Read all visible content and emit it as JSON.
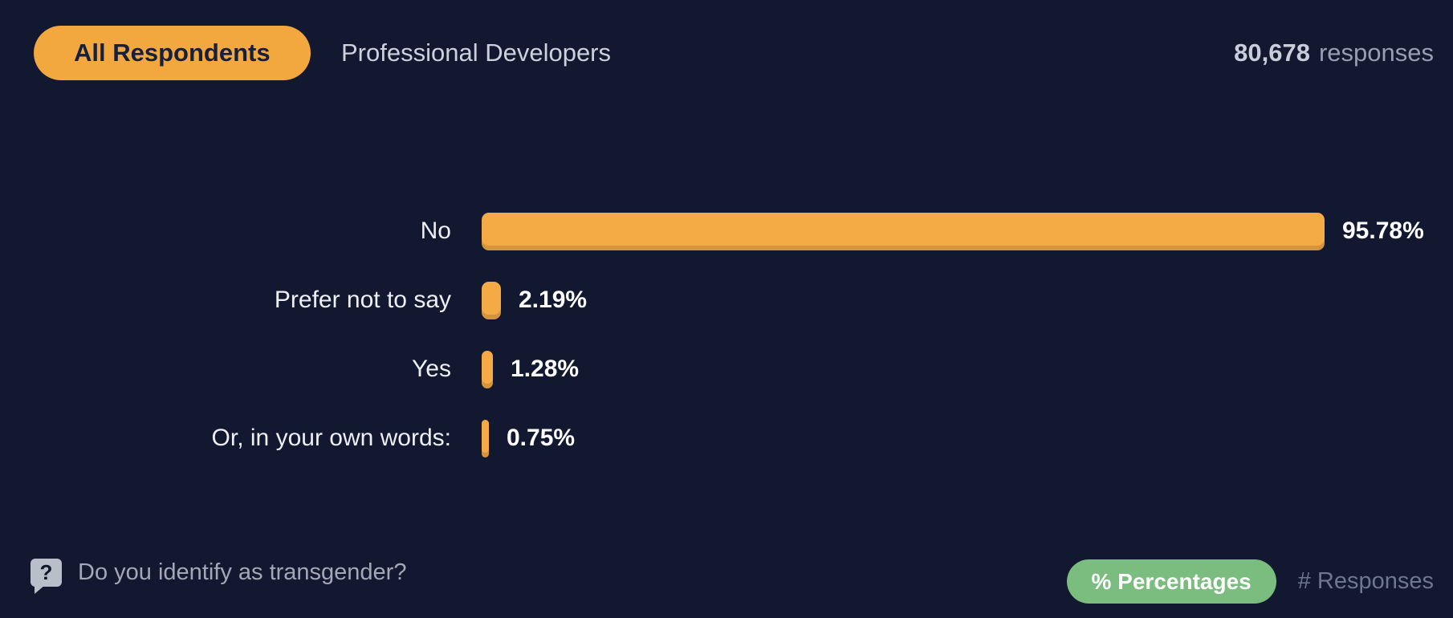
{
  "header": {
    "tabs": [
      {
        "label": "All Respondents",
        "active": true
      },
      {
        "label": "Professional Developers",
        "active": false
      }
    ],
    "responses_count": "80,678",
    "responses_label": "responses"
  },
  "chart_data": {
    "type": "bar",
    "orientation": "horizontal",
    "title": "Do you identify as transgender?",
    "categories": [
      "No",
      "Prefer not to say",
      "Yes",
      "Or, in your own words:"
    ],
    "values": [
      95.78,
      2.19,
      1.28,
      0.75
    ],
    "value_labels": [
      "95.78%",
      "2.19%",
      "1.28%",
      "0.75%"
    ],
    "unit": "%",
    "xlim": [
      0,
      100
    ],
    "bar_color": "#f4aa45",
    "grid": false,
    "legend": false
  },
  "footer": {
    "question_icon": "question-bubble-icon",
    "question_text": "Do you identify as transgender?",
    "toggle": {
      "percentages_label": "% Percentages",
      "responses_label": "# Responses",
      "active": "percentages"
    }
  },
  "colors": {
    "background": "#111830",
    "accent_orange": "#f2a83e",
    "accent_green": "#7abd7f",
    "bar_orange": "#f4aa45",
    "text_light": "#ccd1dc",
    "text_white": "#ffffff"
  }
}
